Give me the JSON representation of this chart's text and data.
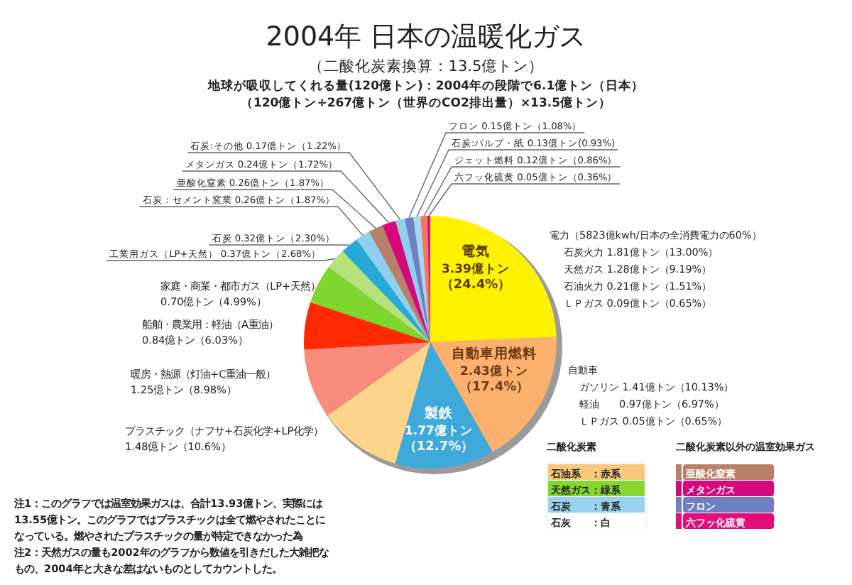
{
  "chart_data": {
    "type": "pie",
    "legend": "bottom right",
    "title": "2004年 日本の温暖化ガス",
    "subtitle": "（二酸化炭素換算：13.5億トン）",
    "categories": [
      "電気",
      "自動車用燃料",
      "製鉄",
      "プラスチック（ナフサ+石炭化学+LP化学）",
      "暖房・熱源（灯油+C重油一般）",
      "船舶・農業用：軽油（A重油）",
      "家庭・商業・都市ガス（LP+天然）",
      "工業用ガス（LP+天然）",
      "石炭",
      "石炭：セメント窯業",
      "亜酸化窒素",
      "メタンガス",
      "石炭:その他",
      "フロン",
      "石炭:パルプ・紙",
      "ジェット燃料",
      "六フッ化硫黄"
    ],
    "values": [
      3.39,
      2.43,
      1.77,
      1.48,
      1.25,
      0.84,
      0.7,
      0.37,
      0.32,
      0.26,
      0.26,
      0.24,
      0.17,
      0.15,
      0.13,
      0.12,
      0.05
    ],
    "value_labels": [
      "3.39億トン（24.4%）",
      "2.43億トン（17.4%）",
      "1.77億トン（12.7%）",
      "1.48億トン（10.6%）",
      "1.25億トン（8.98%）",
      "0.84億トン（6.03%）",
      "0.70億トン（4.99%）",
      "0.37億トン（2.68%）",
      "0.32億トン（2.30%）",
      "0.26億トン（1.87%）",
      "0.26億トン（1.87%）",
      "0.24億トン（1.72%）",
      "0.17億トン（1.22%）",
      "0.15億トン（1.08%）",
      "0.13億トン(0.93%)",
      "0.12億トン（0.86%）",
      "0.05億トン（0.36%）"
    ],
    "colors": [
      "#fff200",
      "#fbb06e",
      "#3eaadc",
      "#fdd58a",
      "#f98b7c",
      "#ff2a00",
      "#7fd62e",
      "#b5e27a",
      "#25a9d6",
      "#8fd0ee",
      "#b88069",
      "#d6087c",
      "#8fd0ee",
      "#6e7fc2",
      "#a8d8f0",
      "#f47560",
      "#e40c7a"
    ],
    "annotations": [
      "地球が吸収してくれる量(120億トン)：2004年の段階で6.1億トン（日本）",
      "（120億トン÷267億トン（世界のCO2排出量）×13.5億トン）",
      "電力（5823億kwh/日本の全消費電力の60%）",
      "石炭火力 1.81億トン（13.00%）",
      "天然ガス 1.28億トン（9.19%）",
      "石油火力 0.21億トン（1.51%）",
      "ＬＰガス 0.09億トン（0.65%）",
      "自動車",
      "ガソリン 1.41億トン（10.13%）",
      "軽油　　0.97億トン（6.97%）",
      "ＬＰガス 0.05億トン（0.65%）",
      "二酸化炭素",
      "二酸化炭素以外の温室効果ガス",
      "石油系　：赤系",
      "天然ガス：緑系",
      "石炭　　：青系",
      "石灰　　：白",
      "亜酸化窒素",
      "メタンガス",
      "フロン",
      "六フッ化硫黄",
      "注1：このグラフでは温室効果ガスは、合計13.93億トン、実際には",
      "13.55億トン。このグラフではプラスチックは全て燃やされたことに",
      "なっている。燃やされたプラスチックの量が特定できなかった為",
      "注2：天然ガスの量も2002年のグラフから数値を引きだした大雑把な",
      "もの、2004年と大きな差はないものとしてカウントした。"
    ]
  }
}
